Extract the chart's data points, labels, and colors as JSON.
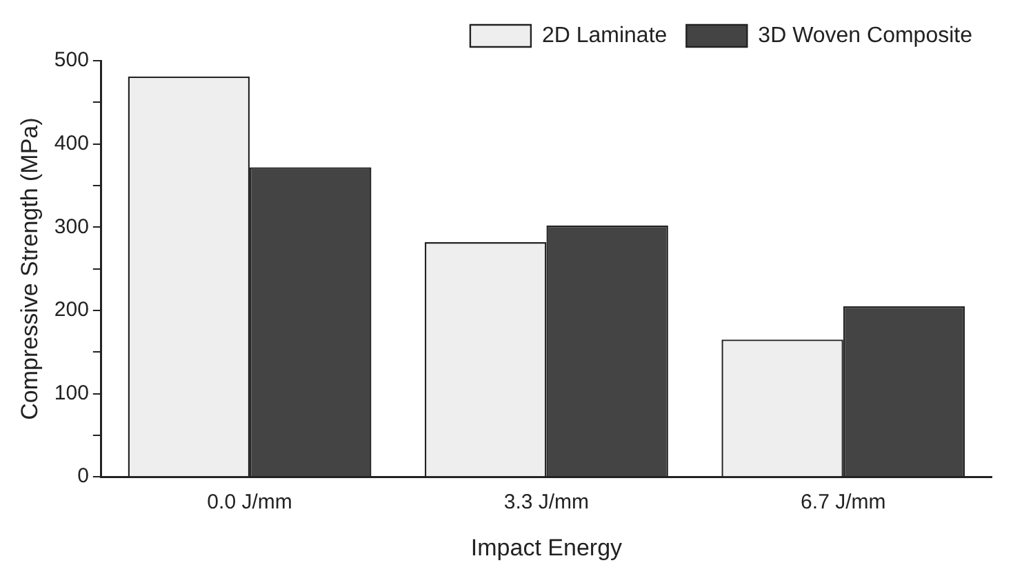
{
  "chart_data": {
    "type": "bar",
    "xlabel": "Impact Energy",
    "ylabel": "Compressive Strength (MPa)",
    "categories": [
      "0.0 J/mm",
      "3.3 J/mm",
      "6.7 J/mm"
    ],
    "series": [
      {
        "name": "2D Laminate",
        "color": "#eeeeee",
        "values": [
          481,
          282,
          165
        ]
      },
      {
        "name": "3D Woven Composite",
        "color": "#444444",
        "values": [
          372,
          302,
          205
        ]
      }
    ],
    "ylim": [
      0,
      500
    ],
    "yticks": [
      0,
      {
        "value": 50,
        "label": null
      },
      100,
      {
        "value": 150,
        "label": null
      },
      200,
      {
        "value": 250,
        "label": null
      },
      300,
      {
        "value": 350,
        "label": null
      },
      400,
      {
        "value": 450,
        "label": null
      },
      500
    ],
    "grid": false,
    "legend": "top right"
  }
}
